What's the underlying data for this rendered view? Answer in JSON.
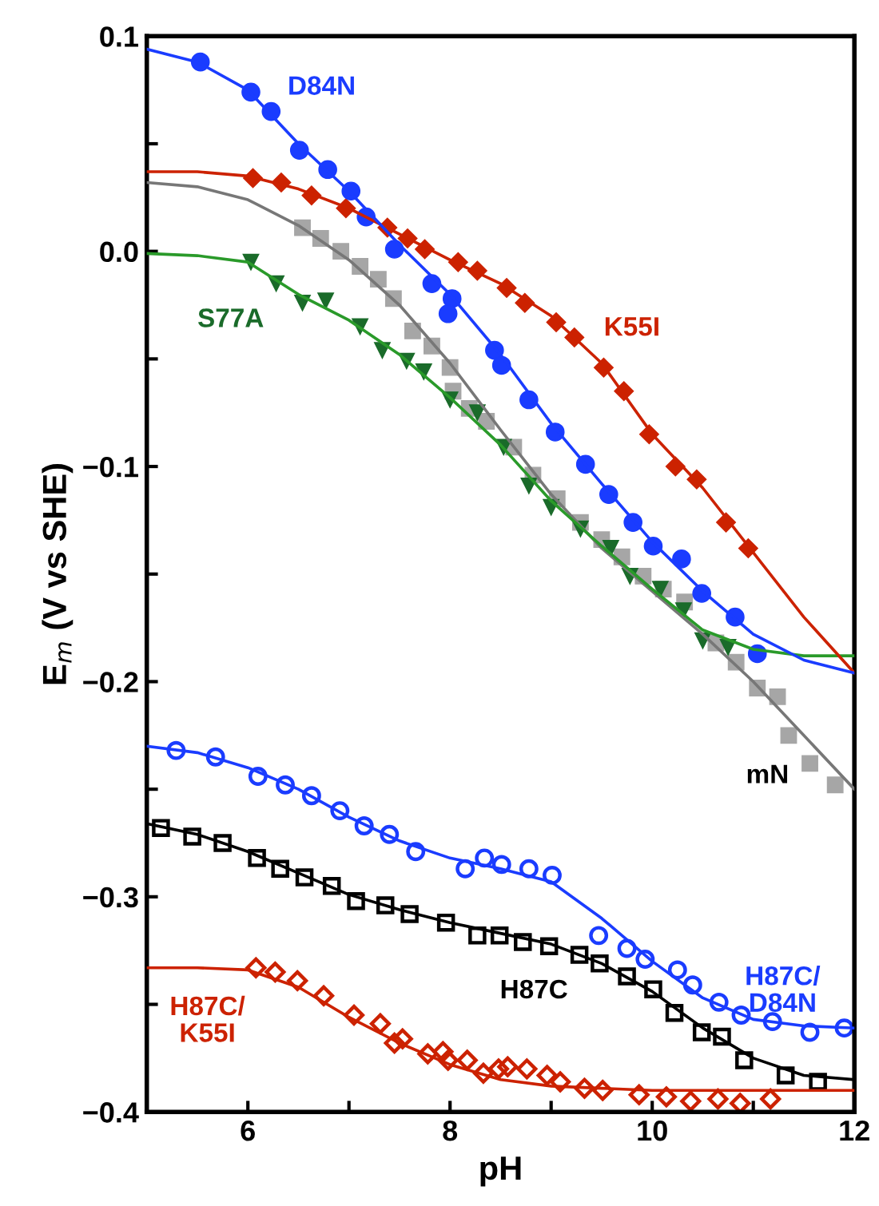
{
  "chart_data": {
    "type": "scatter",
    "xlabel": "pH",
    "ylabel": "E$_{m}$ (V vs SHE)",
    "xlim": [
      5,
      12
    ],
    "xticks": [
      {
        "value": 5,
        "label": null
      },
      6,
      {
        "value": 7,
        "label": null
      },
      8,
      {
        "value": 9,
        "label": null
      },
      10,
      {
        "value": 11,
        "label": null
      },
      12
    ],
    "ylim": [
      -0.4,
      0.1
    ],
    "yticks": [
      {
        "value": -0.4,
        "label": "−0.4"
      },
      {
        "value": -0.35,
        "label": null
      },
      {
        "value": -0.3,
        "label": "−0.3"
      },
      {
        "value": -0.25,
        "label": null
      },
      {
        "value": -0.2,
        "label": "−0.2"
      },
      {
        "value": -0.15,
        "label": null
      },
      {
        "value": -0.1,
        "label": "−0.1"
      },
      {
        "value": -0.05,
        "label": null
      },
      {
        "value": 0.0,
        "label": "0.0"
      },
      {
        "value": 0.05,
        "label": null
      },
      {
        "value": 0.1,
        "label": "0.1"
      }
    ],
    "grid": false,
    "legend": false,
    "series": [
      {
        "type": "line",
        "color": "#777777",
        "x": [
          5,
          5.5,
          6,
          6.5,
          7,
          7.5,
          8,
          8.5,
          9,
          9.5,
          10,
          10.5,
          11,
          11.5,
          12
        ],
        "values": [
          0.032,
          0.03,
          0.024,
          0.012,
          -0.004,
          -0.025,
          -0.052,
          -0.083,
          -0.113,
          -0.138,
          -0.158,
          -0.178,
          -0.2,
          -0.225,
          -0.25
        ]
      },
      {
        "type": "line",
        "color": "#2a9a2a",
        "x": [
          5,
          5.5,
          6,
          6.5,
          7,
          7.5,
          8,
          8.5,
          9,
          9.5,
          10,
          10.5,
          11,
          11.5,
          12
        ],
        "values": [
          -0.001,
          -0.002,
          -0.005,
          -0.02,
          -0.032,
          -0.048,
          -0.068,
          -0.09,
          -0.116,
          -0.137,
          -0.157,
          -0.176,
          -0.185,
          -0.188,
          -0.188
        ]
      },
      {
        "type": "line",
        "color": "#cc2200",
        "x": [
          5,
          5.5,
          6,
          6.5,
          7,
          7.5,
          8,
          8.5,
          9,
          9.5,
          10,
          10.5,
          11,
          11.5,
          12
        ],
        "values": [
          0.037,
          0.037,
          0.035,
          0.029,
          0.02,
          0.008,
          -0.004,
          -0.015,
          -0.03,
          -0.052,
          -0.085,
          -0.11,
          -0.14,
          -0.17,
          -0.196
        ]
      },
      {
        "type": "line",
        "color": "#1a3cff",
        "x": [
          5,
          5.5,
          6,
          6.5,
          7,
          7.5,
          8,
          8.5,
          9,
          9.5,
          10,
          10.5,
          11,
          11.5,
          12
        ],
        "values": [
          0.094,
          0.088,
          0.075,
          0.05,
          0.028,
          0.003,
          -0.02,
          -0.048,
          -0.08,
          -0.108,
          -0.135,
          -0.158,
          -0.178,
          -0.19,
          -0.196
        ]
      },
      {
        "type": "line",
        "color": "#1a3cff",
        "x": [
          5,
          5.5,
          6,
          6.5,
          7,
          7.5,
          8,
          8.5,
          9,
          9.5,
          10,
          10.5,
          11,
          11.5,
          12
        ],
        "values": [
          -0.23,
          -0.233,
          -0.24,
          -0.25,
          -0.263,
          -0.274,
          -0.282,
          -0.287,
          -0.293,
          -0.31,
          -0.33,
          -0.347,
          -0.357,
          -0.36,
          -0.361
        ]
      },
      {
        "type": "line",
        "color": "#000000",
        "x": [
          5,
          5.5,
          6,
          6.5,
          7,
          7.5,
          8,
          8.5,
          9,
          9.5,
          10,
          10.5,
          11,
          11.5,
          12
        ],
        "values": [
          -0.266,
          -0.271,
          -0.279,
          -0.289,
          -0.299,
          -0.306,
          -0.312,
          -0.317,
          -0.322,
          -0.331,
          -0.344,
          -0.361,
          -0.375,
          -0.383,
          -0.385
        ]
      },
      {
        "type": "line",
        "color": "#cc2200",
        "x": [
          5,
          5.5,
          6,
          6.5,
          7,
          7.5,
          8,
          8.5,
          9,
          9.5,
          10,
          12
        ],
        "values": [
          -0.333,
          -0.333,
          -0.334,
          -0.342,
          -0.356,
          -0.368,
          -0.378,
          -0.385,
          -0.388,
          -0.389,
          -0.39,
          -0.39
        ]
      },
      {
        "name": "mN",
        "marker": "square",
        "color": "#a6a6a6",
        "x": [
          6.54,
          6.72,
          6.92,
          7.11,
          7.29,
          7.44,
          7.63,
          7.82,
          8.0,
          8.03,
          8.19,
          8.36,
          8.63,
          8.82,
          9.06,
          9.29,
          9.5,
          9.7,
          9.91,
          10.11,
          10.32,
          10.63,
          10.83,
          11.04,
          11.24,
          11.35,
          11.56,
          11.81
        ],
        "values": [
          0.011,
          0.006,
          0.0,
          -0.007,
          -0.013,
          -0.022,
          -0.037,
          -0.044,
          -0.054,
          -0.065,
          -0.073,
          -0.079,
          -0.091,
          -0.104,
          -0.115,
          -0.126,
          -0.134,
          -0.142,
          -0.151,
          -0.157,
          -0.163,
          -0.182,
          -0.191,
          -0.203,
          -0.207,
          -0.225,
          -0.238,
          -0.248
        ]
      },
      {
        "name": "S77A",
        "marker": "triangle",
        "color": "#1a6b2a",
        "x": [
          6.03,
          6.28,
          6.54,
          6.77,
          7.11,
          7.33,
          7.57,
          7.74,
          8.0,
          8.27,
          8.53,
          8.78,
          9.0,
          9.29,
          9.59,
          9.78,
          10.08,
          10.31,
          10.5,
          10.75
        ],
        "values": [
          -0.005,
          -0.015,
          -0.024,
          -0.023,
          -0.035,
          -0.046,
          -0.051,
          -0.056,
          -0.069,
          -0.075,
          -0.091,
          -0.109,
          -0.119,
          -0.129,
          -0.138,
          -0.151,
          -0.157,
          -0.167,
          -0.181,
          -0.184
        ]
      },
      {
        "name": "K55I",
        "marker": "diamond",
        "color": "#cc2200",
        "x": [
          6.05,
          6.33,
          6.63,
          6.97,
          7.38,
          7.58,
          7.75,
          8.08,
          8.27,
          8.56,
          8.74,
          9.05,
          9.23,
          9.52,
          9.72,
          9.97,
          10.23,
          10.44,
          10.73,
          10.95
        ],
        "values": [
          0.034,
          0.032,
          0.026,
          0.02,
          0.011,
          0.006,
          0.001,
          -0.005,
          -0.009,
          -0.017,
          -0.024,
          -0.033,
          -0.04,
          -0.054,
          -0.065,
          -0.085,
          -0.1,
          -0.106,
          -0.126,
          -0.138
        ]
      },
      {
        "name": "D84N",
        "marker": "circle",
        "color": "#1a3cff",
        "x": [
          5.53,
          6.03,
          6.23,
          6.51,
          6.79,
          7.02,
          7.17,
          7.45,
          7.82,
          8.02,
          7.98,
          8.44,
          8.51,
          8.78,
          9.04,
          9.34,
          9.57,
          9.81,
          10.01,
          10.29,
          10.49,
          10.82,
          11.04
        ],
        "values": [
          0.088,
          0.074,
          0.065,
          0.047,
          0.038,
          0.028,
          0.016,
          0.001,
          -0.015,
          -0.022,
          -0.029,
          -0.046,
          -0.053,
          -0.069,
          -0.084,
          -0.099,
          -0.113,
          -0.126,
          -0.137,
          -0.143,
          -0.159,
          -0.17,
          -0.187
        ]
      },
      {
        "name": "H87C/\nD84N",
        "marker": "circle",
        "color": "#1a3cff",
        "x": [
          5.29,
          5.68,
          6.1,
          6.37,
          6.63,
          6.91,
          7.15,
          7.4,
          7.66,
          8.15,
          8.34,
          8.51,
          8.78,
          9.01,
          9.47,
          9.75,
          9.93,
          10.25,
          10.4,
          10.66,
          10.88,
          11.19,
          11.56,
          11.9
        ],
        "values": [
          -0.232,
          -0.235,
          -0.244,
          -0.248,
          -0.253,
          -0.26,
          -0.267,
          -0.271,
          -0.279,
          -0.287,
          -0.282,
          -0.285,
          -0.287,
          -0.29,
          -0.318,
          -0.324,
          -0.329,
          -0.334,
          -0.341,
          -0.349,
          -0.355,
          -0.358,
          -0.363,
          -0.361
        ]
      },
      {
        "name": "H87C",
        "marker": "square",
        "color": "#000000",
        "x": [
          5.14,
          5.45,
          5.75,
          6.09,
          6.32,
          6.56,
          6.83,
          7.07,
          7.36,
          7.6,
          7.96,
          8.27,
          8.49,
          8.72,
          8.98,
          9.28,
          9.48,
          9.75,
          10.01,
          10.22,
          10.49,
          10.69,
          10.91,
          11.32,
          11.64
        ],
        "values": [
          -0.268,
          -0.272,
          -0.275,
          -0.282,
          -0.287,
          -0.291,
          -0.295,
          -0.302,
          -0.304,
          -0.308,
          -0.312,
          -0.318,
          -0.318,
          -0.321,
          -0.323,
          -0.327,
          -0.331,
          -0.337,
          -0.343,
          -0.354,
          -0.363,
          -0.365,
          -0.376,
          -0.383,
          -0.386
        ]
      },
      {
        "name": "H87C/\nK55I",
        "marker": "diamond",
        "color": "#cc2200",
        "x": [
          6.08,
          6.27,
          6.49,
          6.75,
          7.05,
          7.31,
          7.53,
          7.45,
          7.78,
          7.93,
          7.98,
          8.17,
          8.33,
          8.48,
          8.57,
          8.76,
          8.96,
          9.09,
          9.33,
          9.51,
          9.87,
          10.14,
          10.38,
          10.65,
          10.87,
          11.17
        ],
        "values": [
          -0.333,
          -0.335,
          -0.339,
          -0.346,
          -0.355,
          -0.359,
          -0.366,
          -0.368,
          -0.373,
          -0.372,
          -0.376,
          -0.376,
          -0.382,
          -0.38,
          -0.379,
          -0.38,
          -0.383,
          -0.386,
          -0.389,
          -0.39,
          -0.392,
          -0.393,
          -0.395,
          -0.394,
          -0.396,
          -0.394
        ]
      }
    ]
  }
}
